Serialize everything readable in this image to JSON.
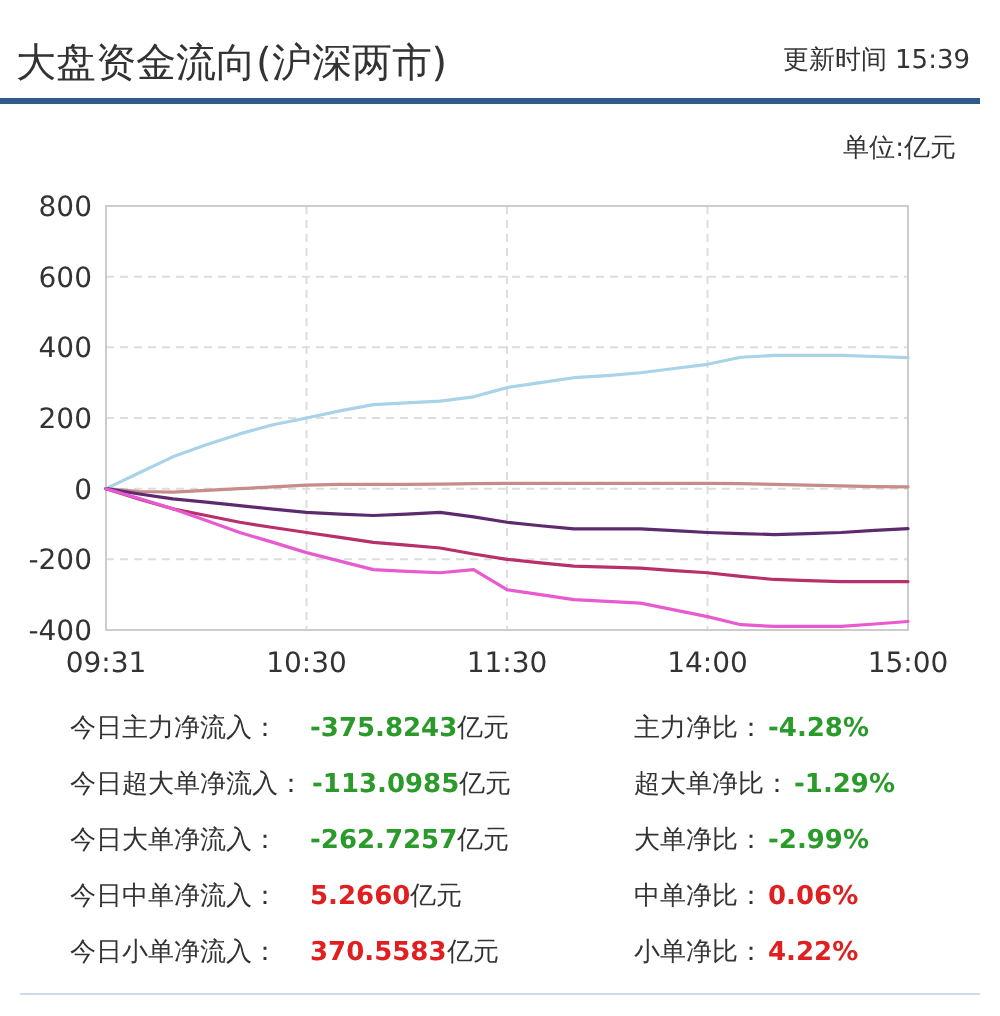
{
  "chart_data": {
    "type": "line",
    "title": "大盘资金流向(沪深两市)",
    "subtitle": "更新时间 15:39",
    "ylabel": "单位:亿元",
    "categories": [
      "09:31",
      null,
      null,
      null,
      null,
      null,
      "10:30",
      null,
      null,
      null,
      null,
      null,
      "11:30",
      null,
      null,
      null,
      null,
      null,
      "14:00",
      null,
      null,
      null,
      null,
      null,
      "15:00"
    ],
    "ylim": [
      -400,
      800
    ],
    "yticks": [
      -400,
      -200,
      0,
      200,
      400,
      600,
      800
    ],
    "grid": true,
    "series": [
      {
        "color": "#a9d3e8",
        "values": [
          0,
          45,
          90,
          124,
          155,
          181,
          200,
          220,
          238,
          243,
          248,
          260,
          286,
          300,
          314,
          320,
          328,
          340,
          352,
          372,
          377,
          377,
          377,
          374,
          371
        ]
      },
      {
        "color": "#c98a8a",
        "values": [
          0,
          -8,
          -10,
          -5,
          0,
          5,
          10,
          12,
          12,
          12,
          13,
          14,
          15,
          15,
          15,
          15,
          15,
          15,
          15,
          14,
          12,
          10,
          8,
          6,
          5
        ]
      },
      {
        "color": "#b8306a",
        "values": [
          0,
          -30,
          -57,
          -76,
          -95,
          -110,
          -124,
          -138,
          -152,
          -160,
          -168,
          -185,
          -200,
          -210,
          -219,
          -222,
          -225,
          -232,
          -238,
          -248,
          -257,
          -260,
          -263,
          -263,
          -263
        ]
      },
      {
        "color": "#5e2a6e",
        "values": [
          0,
          -15,
          -29,
          -38,
          -48,
          -58,
          -67,
          -72,
          -76,
          -72,
          -67,
          -80,
          -95,
          -105,
          -114,
          -114,
          -114,
          -119,
          -124,
          -127,
          -130,
          -127,
          -124,
          -118,
          -113
        ]
      },
      {
        "color": "#e85ad0",
        "values": [
          0,
          -28,
          -57,
          -90,
          -124,
          -152,
          -181,
          -205,
          -229,
          -234,
          -238,
          -229,
          -286,
          -300,
          -314,
          -319,
          -324,
          -343,
          -362,
          -385,
          -390,
          -390,
          -390,
          -383,
          -376
        ]
      }
    ],
    "annotations": [
      "今日主力净流入：",
      "-375.8243亿元",
      "主力净比：",
      "-4.28%",
      "今日超大单净流入：",
      "-113.0985亿元",
      "超大单净比：",
      "-1.29%",
      "今日大单净流入：",
      "-262.7257亿元",
      "大单净比：",
      "-2.99%",
      "今日中单净流入：",
      "5.2660亿元",
      "中单净比：",
      "0.06%",
      "今日小单净流入：",
      "370.5583亿元",
      "小单净比：",
      "4.22%"
    ]
  }
}
